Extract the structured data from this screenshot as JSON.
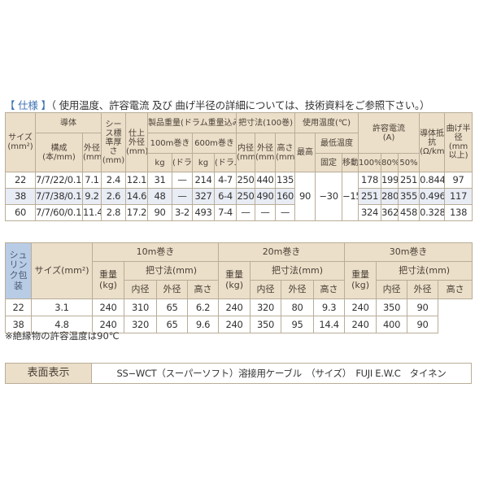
{
  "title": {
    "bracket": "【 仕様 】",
    "text": "（ 使用温度、許容電流 及び 曲げ半径の詳細については、技術資料をご参照下さい。）"
  },
  "spec_table": {
    "headers": {
      "size": "サイズ(mm²)",
      "conductor": "導体",
      "composition": "構成",
      "composition_unit": "(本/mm)",
      "cond_od": "外径",
      "cond_od_unit": "(mm)",
      "sheath": "シース標準厚さ",
      "sheath_unit": "(mm)",
      "finish_od": "仕上外径",
      "finish_od_unit": "(mm)",
      "weight": "製品重量(ドラム重量込み)",
      "w100": "100m巻き",
      "w600": "600m巻き",
      "kg": "kg",
      "drum": "(ドラム)",
      "dims": "把寸法(100巻)",
      "inner": "内径",
      "outer": "外径",
      "height": "高さ",
      "mm": "(mm)",
      "temp": "使用温度(℃)",
      "max": "最高",
      "min": "最低温度",
      "fixed": "固定",
      "moving": "移動",
      "current": "許容電流",
      "current_unit": "(A)",
      "p100": "100%",
      "p80": "80%",
      "p50": "50%",
      "resistance": "導体抵抗",
      "resistance_unit": "(Ω/km)",
      "bend": "曲げ半径",
      "bend_unit": "(mm以上)"
    },
    "rows": [
      [
        "22",
        "7/7/22/0.16",
        "7.1",
        "2.4",
        "12.1",
        "31",
        "—",
        "214",
        "4-7",
        "250",
        "440",
        "135",
        "178",
        "199",
        "251",
        "0.844",
        "97"
      ],
      [
        "38",
        "7/7/38/0.16",
        "9.2",
        "2.6",
        "14.6",
        "48",
        "—",
        "327",
        "6-4",
        "250",
        "490",
        "160",
        "251",
        "280",
        "355",
        "0.496",
        "117"
      ],
      [
        "60",
        "7/7/60/0.16",
        "11.4",
        "2.8",
        "17.2",
        "90",
        "3-2",
        "493",
        "7-4",
        "—",
        "—",
        "—",
        "324",
        "362",
        "458",
        "0.328",
        "138"
      ]
    ],
    "temp_values": {
      "max": "90",
      "fixed": "−30",
      "moving": "−15"
    }
  },
  "shrink_table": {
    "side_label": "シュリンク包装",
    "headers": {
      "size": "サイズ(mm²)",
      "r10": "10m巻き",
      "r20": "20m巻き",
      "r30": "30m巻き",
      "weight": "重量",
      "kg": "(kg)",
      "dims": "把寸法(mm)",
      "inner": "内径",
      "outer": "外径",
      "height": "高さ"
    },
    "rows": [
      [
        "22",
        "3.1",
        "240",
        "310",
        "65",
        "6.2",
        "240",
        "320",
        "80",
        "9.3",
        "240",
        "350",
        "90"
      ],
      [
        "38",
        "4.8",
        "240",
        "320",
        "65",
        "9.6",
        "240",
        "350",
        "95",
        "14.4",
        "240",
        "400",
        "90"
      ]
    ]
  },
  "note": "※絶縁物の許容温度は90℃",
  "surface": {
    "label": "表面表示",
    "value": "SS−WCT（スーパーソフト）溶接用ケーブル　（サイズ）　FUJI E.W.C　タイネン"
  }
}
